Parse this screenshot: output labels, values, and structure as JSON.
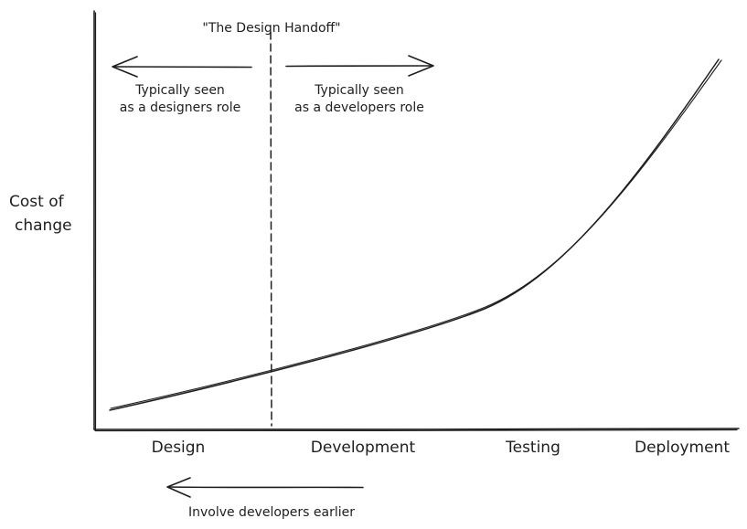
{
  "handoff_label": "\"The Design Handoff\"",
  "left_note": {
    "line1": "Typically seen",
    "line2": "as a designers role"
  },
  "right_note": {
    "line1": "Typically seen",
    "line2": "as a developers role"
  },
  "y_axis_label": {
    "line1": "Cost of",
    "line2": "change"
  },
  "phases": [
    "Design",
    "Development",
    "Testing",
    "Deployment"
  ],
  "bottom_note": "Involve developers earlier",
  "colors": {
    "ink": "#1e1e1e",
    "background": "#ffffff"
  }
}
